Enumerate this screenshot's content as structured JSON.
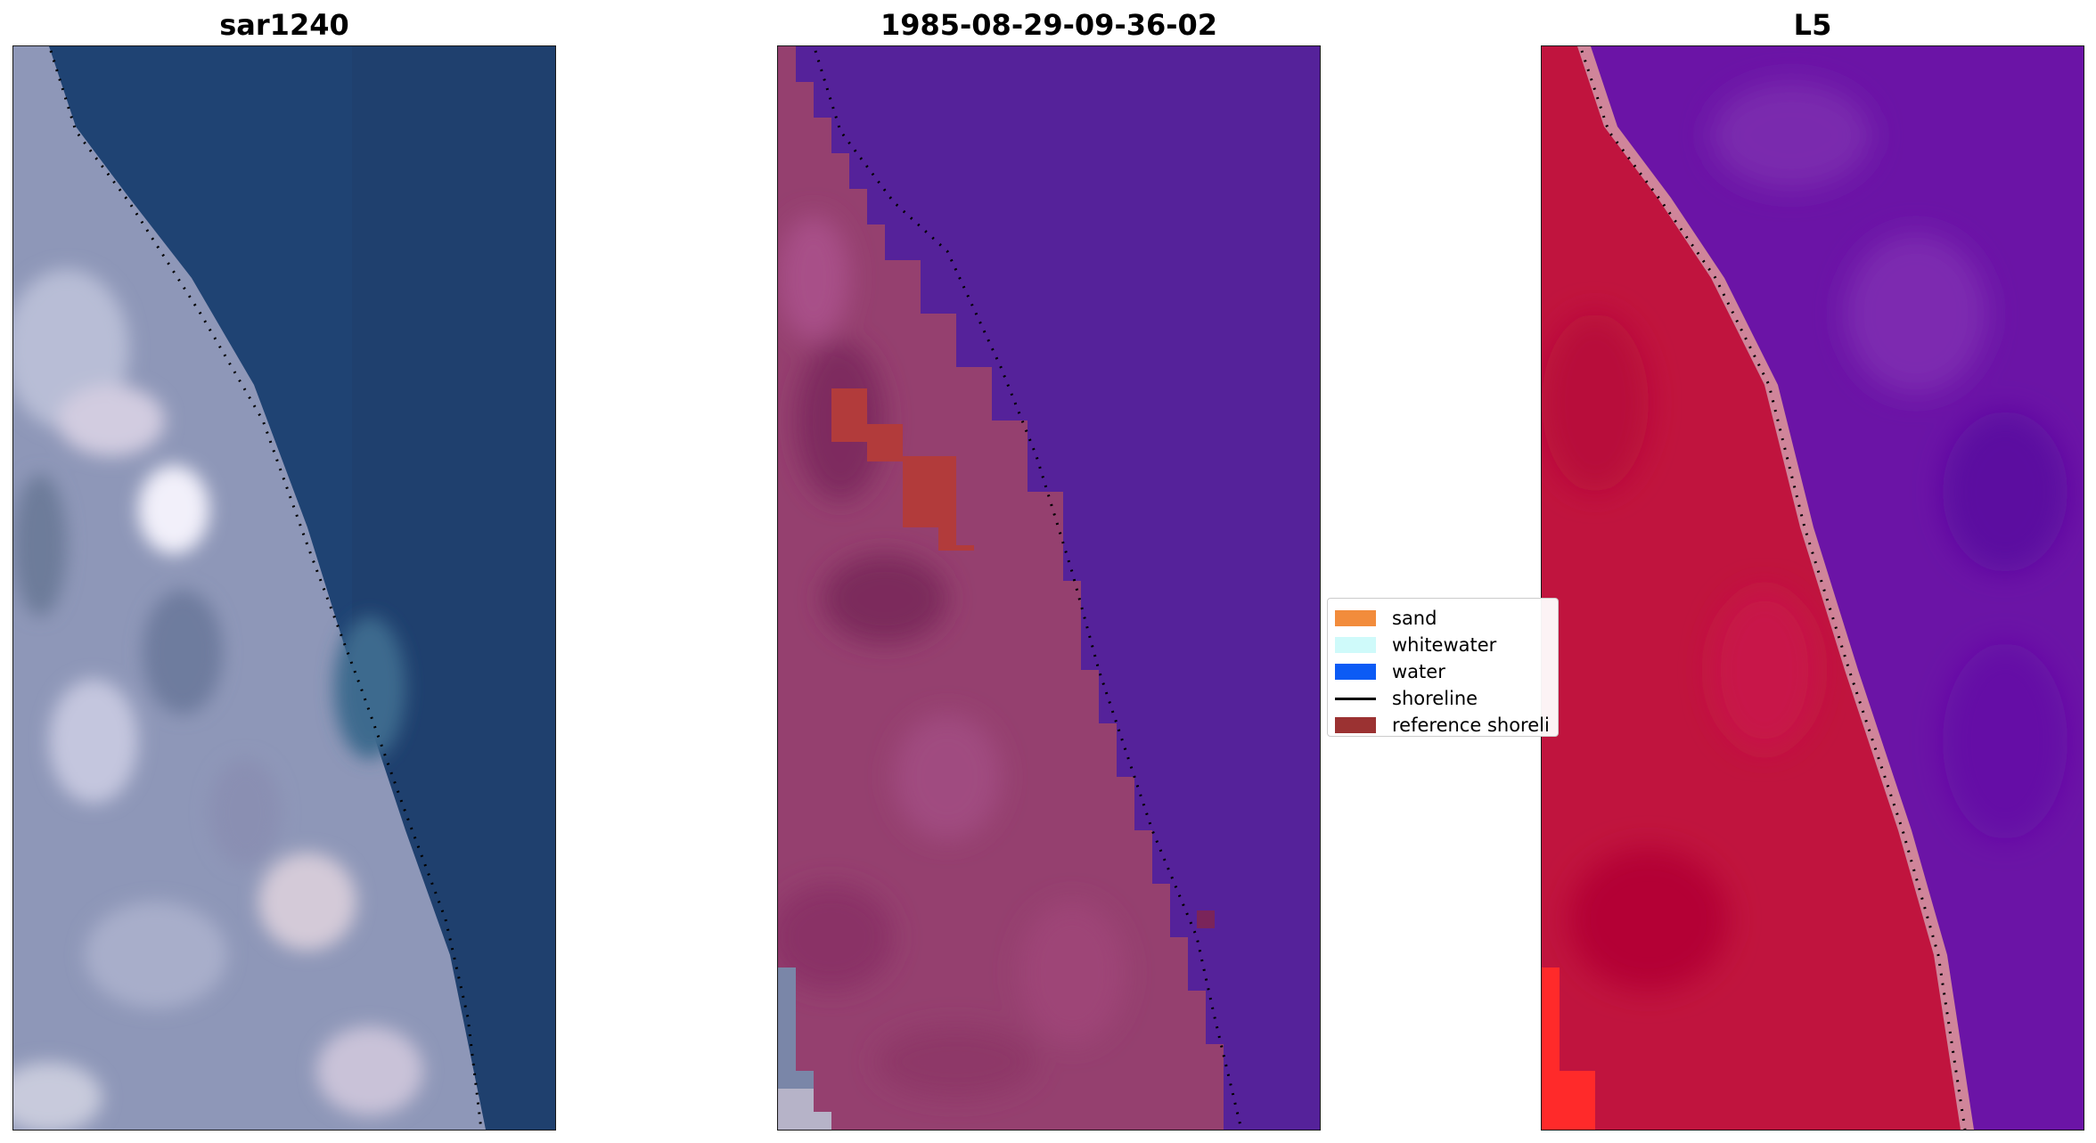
{
  "panels": [
    {
      "title": "sar1240"
    },
    {
      "title": "1985-08-29-09-36-02"
    },
    {
      "title": "L5"
    }
  ],
  "legend": {
    "entries": [
      {
        "label": "sand",
        "color": "#F28C3C",
        "kind": "patch"
      },
      {
        "label": "whitewater",
        "color": "#CFFAFA",
        "kind": "patch"
      },
      {
        "label": "water",
        "color": "#0C5BF5",
        "kind": "patch"
      },
      {
        "label": "shoreline",
        "color": "#000000",
        "kind": "line"
      },
      {
        "label": "reference shoreli",
        "color": "#9B3232",
        "kind": "patch"
      }
    ]
  },
  "colors": {
    "rgb_water": "#1F4373",
    "rgb_land": "#9AA0BE",
    "classified_water": "#55229A",
    "classified_land": "#95406F",
    "classified_reference": "#B23B3B",
    "index_water": "#6B14A6",
    "index_land": "#C0143E",
    "index_edge": "#D0859A",
    "shoreline_dots": "#000000"
  }
}
